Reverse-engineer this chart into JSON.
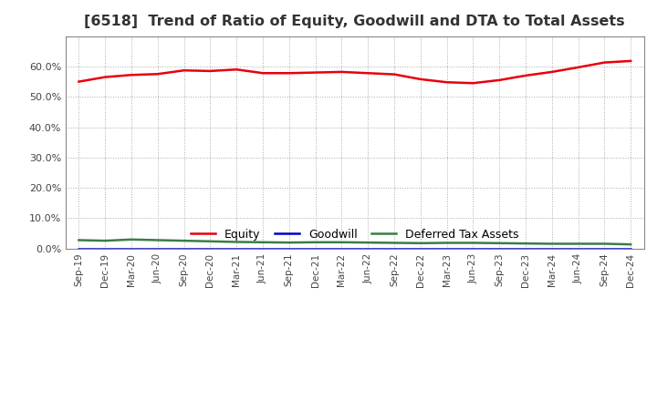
{
  "title": "[6518]  Trend of Ratio of Equity, Goodwill and DTA to Total Assets",
  "x_labels": [
    "Sep-19",
    "Dec-19",
    "Mar-20",
    "Jun-20",
    "Sep-20",
    "Dec-20",
    "Mar-21",
    "Jun-21",
    "Sep-21",
    "Dec-21",
    "Mar-22",
    "Jun-22",
    "Sep-22",
    "Dec-22",
    "Mar-23",
    "Jun-23",
    "Sep-23",
    "Dec-23",
    "Mar-24",
    "Jun-24",
    "Sep-24",
    "Dec-24"
  ],
  "equity": [
    0.55,
    0.565,
    0.572,
    0.575,
    0.587,
    0.585,
    0.59,
    0.578,
    0.578,
    0.58,
    0.582,
    0.578,
    0.574,
    0.558,
    0.548,
    0.545,
    0.555,
    0.57,
    0.582,
    0.597,
    0.613,
    0.618
  ],
  "goodwill": [
    0.0,
    0.0,
    0.0,
    0.0,
    0.0,
    0.0,
    0.0,
    0.0,
    0.0,
    0.0,
    0.0,
    0.0,
    0.0,
    0.0,
    0.0,
    0.0,
    0.0,
    0.0,
    0.0,
    0.0,
    0.0,
    0.0
  ],
  "dta": [
    0.028,
    0.026,
    0.03,
    0.028,
    0.026,
    0.024,
    0.022,
    0.021,
    0.02,
    0.021,
    0.021,
    0.02,
    0.019,
    0.018,
    0.019,
    0.019,
    0.018,
    0.017,
    0.016,
    0.016,
    0.016,
    0.014
  ],
  "equity_color": "#e8000d",
  "goodwill_color": "#0000cd",
  "dta_color": "#3a7d44",
  "background_color": "#ffffff",
  "plot_bg_color": "#ffffff",
  "grid_color": "#aaaaaa",
  "ylim": [
    0.0,
    0.7
  ],
  "yticks": [
    0.0,
    0.1,
    0.2,
    0.3,
    0.4,
    0.5,
    0.6
  ],
  "title_fontsize": 11.5,
  "legend_labels": [
    "Equity",
    "Goodwill",
    "Deferred Tax Assets"
  ]
}
